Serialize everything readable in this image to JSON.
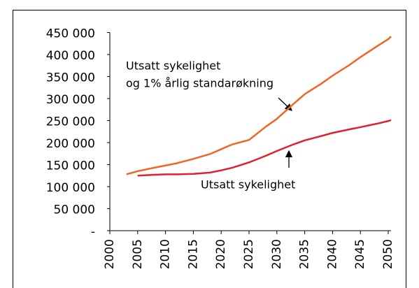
{
  "chart_data": {
    "type": "line",
    "x": [
      2003,
      2005,
      2008,
      2010,
      2012,
      2015,
      2018,
      2020,
      2022,
      2025,
      2028,
      2030,
      2033,
      2035,
      2038,
      2040,
      2043,
      2045,
      2048,
      2050,
      2050.5
    ],
    "series": [
      {
        "name": "Utsatt sykelighet og 1% årlig standarøkning",
        "color": "#f26522",
        "values": [
          128000,
          135000,
          143000,
          148000,
          153000,
          163000,
          174000,
          185000,
          196000,
          206000,
          236000,
          254000,
          288000,
          310000,
          334000,
          352000,
          376000,
          394000,
          419000,
          435000,
          441000
        ]
      },
      {
        "name": "Utsatt sykelighet",
        "color": "#e0202a",
        "values": [
          null,
          125000,
          127000,
          128000,
          128000,
          129000,
          132000,
          137000,
          143000,
          155000,
          170000,
          181000,
          196000,
          205000,
          215000,
          222000,
          230000,
          235000,
          243000,
          249000,
          251000
        ]
      }
    ],
    "annotations": [
      "Utsatt sykelighet",
      "og 1% årlig standarøkning",
      "Utsatt sykelighet"
    ],
    "xlim": [
      2000,
      2050.5
    ],
    "xticks": [
      2000,
      2005,
      2010,
      2015,
      2020,
      2025,
      2030,
      2035,
      2040,
      2045,
      2050
    ],
    "ylim": [
      0,
      450000
    ],
    "yticks": [
      {
        "value": 0,
        "label": "-"
      },
      {
        "value": 50000,
        "label": "50 000"
      },
      {
        "value": 100000,
        "label": "100 000"
      },
      {
        "value": 150000,
        "label": "150 000"
      },
      {
        "value": 200000,
        "label": "200 000"
      },
      {
        "value": 250000,
        "label": "250 000"
      },
      {
        "value": 300000,
        "label": "300 000"
      },
      {
        "value": 350000,
        "label": "350 000"
      },
      {
        "value": 400000,
        "label": "400 000"
      },
      {
        "value": 450000,
        "label": "450 000"
      }
    ],
    "grid": false
  }
}
